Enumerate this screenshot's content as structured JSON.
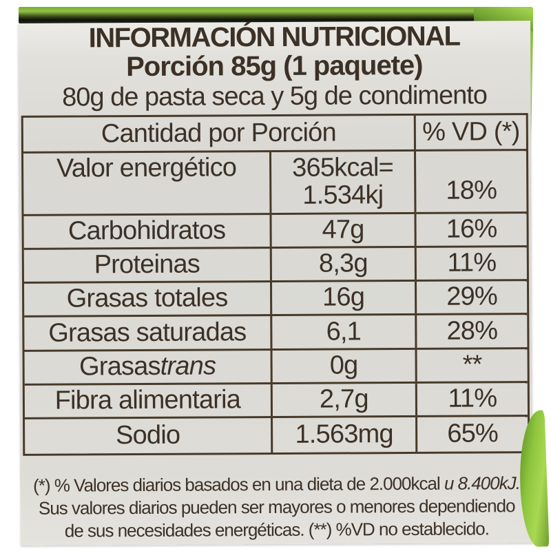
{
  "label": {
    "title": "INFORMACIÓN NUTRICIONAL",
    "subtitle": "Porción 85g (1 paquete)",
    "composition": "80g de pasta seca y 5g de condimento"
  },
  "table": {
    "header": {
      "amount_col": "Cantidad por Porción",
      "dv_col": "% VD (*)"
    },
    "rows": [
      {
        "name": "Valor energético",
        "value_line1": "365kcal=",
        "value_line2": "1.534kj",
        "vd": "18%"
      },
      {
        "name": "Carbohidratos",
        "value": "47g",
        "vd": "16%"
      },
      {
        "name": "Proteinas",
        "value": "8,3g",
        "vd": "11%"
      },
      {
        "name": "Grasas totales",
        "value": "16g",
        "vd": "29%"
      },
      {
        "name": "Grasas saturadas",
        "value": "6,1",
        "vd": "28%"
      },
      {
        "name": "Grasas ",
        "name_italic": "trans",
        "value": "0g",
        "vd": "**"
      },
      {
        "name": "Fibra alimentaria",
        "value": "2,7g",
        "vd": "11%"
      },
      {
        "name": "Sodio",
        "value": "1.563mg",
        "vd": "65%"
      }
    ]
  },
  "footnote": {
    "line1_regular": "(*) % Valores diarios basados en una dieta de 2.000kcal ",
    "line1_italic": "u 8.400kJ.",
    "line2": "Sus valores diarios pueden ser mayores o menores dependiendo",
    "line3": "de sus necesidades energéticas. (**) %VD no establecido."
  },
  "colors": {
    "package_green": "#8ec63e",
    "package_green_dark": "#55821f",
    "label_background": "#dbdad5",
    "text": "#3c3126",
    "table_border": "#473a2a"
  }
}
